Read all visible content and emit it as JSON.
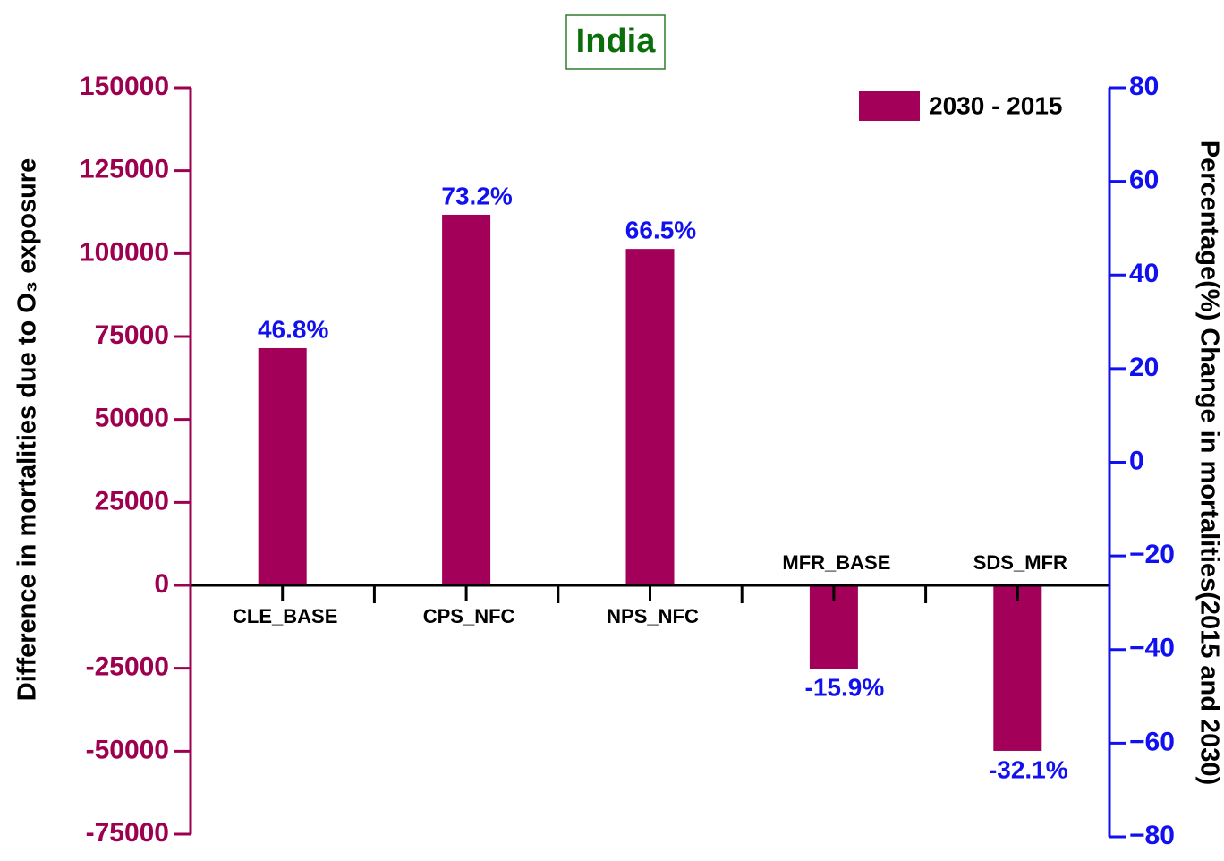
{
  "chart_data": {
    "type": "bar",
    "title": "India",
    "ylabel": "Difference in mortalities due to O₃ exposure",
    "y2label": "Percentage(%) Change in mortalities(2015 and 2030)",
    "categories": [
      "CLE_BASE",
      "CPS_NFC",
      "NPS_NFC",
      "MFR_BASE",
      "SDS_MFR"
    ],
    "series": [
      {
        "name": "2030 - 2015",
        "color": "#a3005a",
        "values": [
          71500,
          111700,
          101400,
          -25100,
          -49900
        ],
        "change_values": [
          46.8,
          73.2,
          66.5,
          -15.9,
          -32.1
        ],
        "change_labels": [
          "46.8%",
          "73.2%",
          "66.5%",
          "-15.9%",
          "-32.1%"
        ]
      }
    ],
    "ylim": [
      -75000,
      150000
    ],
    "yticks": [
      -75000,
      -50000,
      -25000,
      0,
      25000,
      50000,
      75000,
      100000,
      125000,
      150000
    ],
    "y2lim": [
      -80,
      80
    ],
    "y2ticks": [
      -80,
      -60,
      -40,
      -20,
      0,
      20,
      40,
      60,
      80
    ],
    "legend": "upper right"
  }
}
